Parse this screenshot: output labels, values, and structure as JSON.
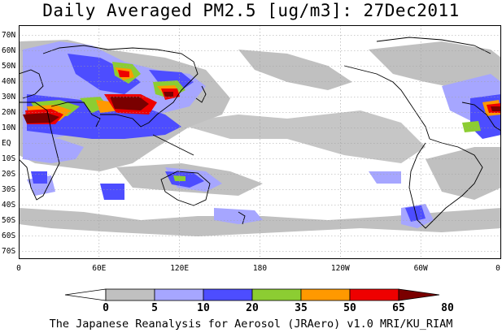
{
  "title": "Daily Averaged PM2.5 [ug/m3]: 27Dec2011",
  "footer": "The Japanese Reanalysis for Aerosol (JRAero) v1.0 MRI/KU_RIAM",
  "y_axis": {
    "labels": [
      "70N",
      "60N",
      "50N",
      "40N",
      "30N",
      "20N",
      "10N",
      "EQ",
      "10S",
      "20S",
      "30S",
      "40S",
      "50S",
      "60S",
      "70S"
    ]
  },
  "x_axis": {
    "labels": [
      "0",
      "60E",
      "120E",
      "180",
      "120W",
      "60W",
      "0"
    ]
  },
  "colorbar": {
    "ticks": [
      "0",
      "5",
      "10",
      "20",
      "35",
      "50",
      "65",
      "80"
    ],
    "colors": [
      "#ffffff",
      "#c0c0c0",
      "#a6a6ff",
      "#4d4dff",
      "#8ccd32",
      "#ff9900",
      "#ee0000",
      "#7a0000"
    ]
  },
  "map_colors": {
    "land_outline": "#000000",
    "grid": "#a0a0a0"
  }
}
